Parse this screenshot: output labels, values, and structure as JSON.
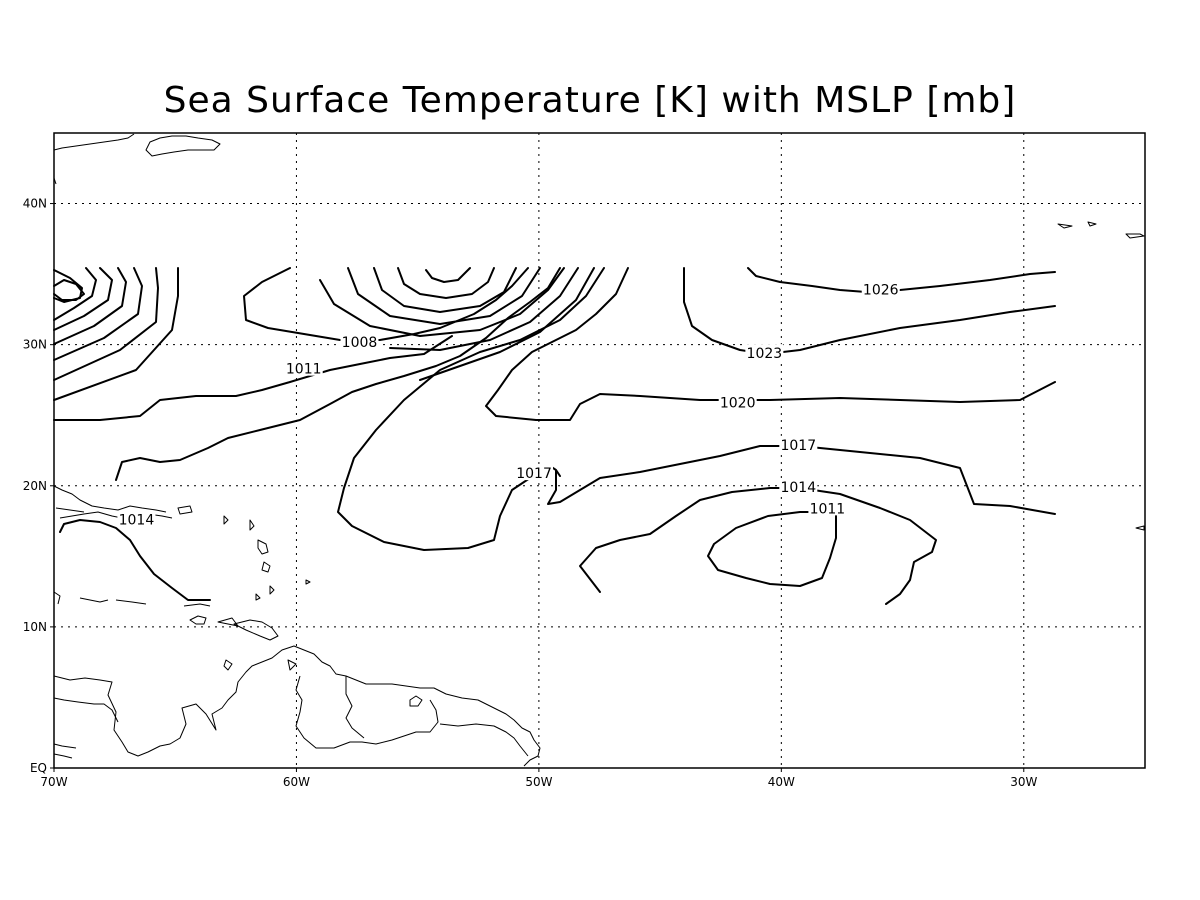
{
  "title": "Sea Surface Temperature [K] with MSLP [mb]",
  "x_ticks": [
    {
      "lon": -70,
      "label": "70W"
    },
    {
      "lon": -60,
      "label": "60W"
    },
    {
      "lon": -50,
      "label": "50W"
    },
    {
      "lon": -40,
      "label": "40W"
    },
    {
      "lon": -30,
      "label": "30W"
    }
  ],
  "y_ticks": [
    {
      "lat": 0,
      "label": "EQ"
    },
    {
      "lat": 10,
      "label": "10N"
    },
    {
      "lat": 20,
      "label": "20N"
    },
    {
      "lat": 30,
      "label": "30N"
    },
    {
      "lat": 40,
      "label": "40N"
    }
  ],
  "extent": {
    "lon": [
      -70,
      -25
    ],
    "lat": [
      0,
      45
    ]
  },
  "grid": true,
  "contour_labels": [
    {
      "text": "1026",
      "lon": -35.9,
      "lat": 33.9
    },
    {
      "text": "1023",
      "lon": -40.7,
      "lat": 29.4
    },
    {
      "text": "1020",
      "lon": -41.8,
      "lat": 25.9
    },
    {
      "text": "1017",
      "lon": -39.3,
      "lat": 22.9
    },
    {
      "text": "1017",
      "lon": -50.2,
      "lat": 20.9
    },
    {
      "text": "1014",
      "lon": -39.3,
      "lat": 19.9
    },
    {
      "text": "1014",
      "lon": -66.6,
      "lat": 17.6
    },
    {
      "text": "1011",
      "lon": -38.1,
      "lat": 18.4
    },
    {
      "text": "1011",
      "lon": -59.7,
      "lat": 28.3
    },
    {
      "text": "1008",
      "lon": -57.4,
      "lat": 30.2
    }
  ]
}
